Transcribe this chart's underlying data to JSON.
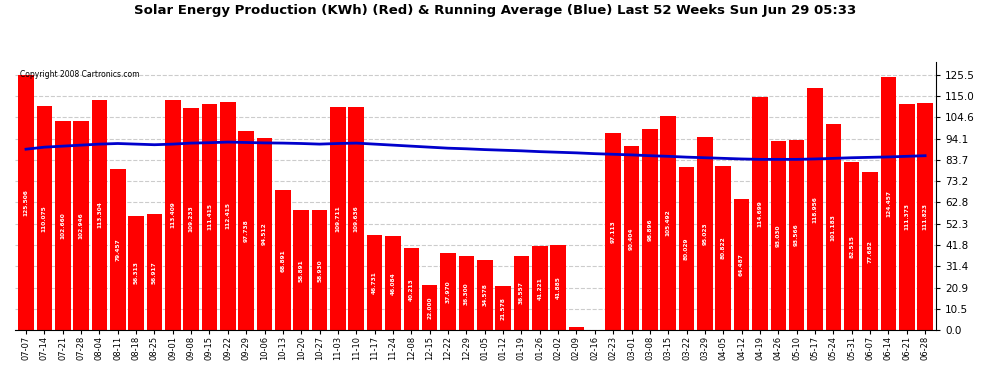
{
  "title": "Solar Energy Production (KWh) (Red) & Running Average (Blue) Last 52 Weeks Sun Jun 29 05:33",
  "copyright": "Copyright 2008 Cartronics.com",
  "bar_color": "#ff0000",
  "avg_line_color": "#0000cc",
  "background_color": "#ffffff",
  "plot_bg_color": "#ffffff",
  "grid_color": "#cccccc",
  "categories": [
    "07-07",
    "07-14",
    "07-21",
    "07-28",
    "08-04",
    "08-11",
    "08-18",
    "08-25",
    "09-01",
    "09-08",
    "09-15",
    "09-22",
    "09-29",
    "10-06",
    "10-13",
    "10-20",
    "10-27",
    "11-03",
    "11-10",
    "11-17",
    "11-24",
    "12-08",
    "12-15",
    "12-22",
    "12-29",
    "01-05",
    "01-12",
    "01-19",
    "01-26",
    "02-02",
    "02-09",
    "02-16",
    "02-23",
    "03-01",
    "03-08",
    "03-15",
    "03-22",
    "03-29",
    "04-05",
    "04-12",
    "04-19",
    "04-26",
    "05-10",
    "05-17",
    "05-24",
    "05-31",
    "06-07",
    "06-14",
    "06-21",
    "06-28"
  ],
  "values": [
    125.506,
    110.075,
    102.66,
    102.946,
    113.304,
    79.457,
    56.313,
    56.917,
    113.409,
    109.233,
    111.415,
    112.415,
    97.738,
    94.512,
    68.891,
    58.891,
    58.93,
    109.711,
    109.636,
    46.731,
    46.084,
    40.213,
    22.0,
    37.97,
    36.3,
    34.578,
    21.578,
    36.557,
    41.221,
    41.885,
    1.413,
    0.0,
    97.113,
    90.404,
    98.896,
    105.492,
    80.029,
    95.023,
    80.822,
    64.487,
    114.699,
    93.03,
    93.566,
    118.956,
    101.183,
    82.515,
    77.682,
    124.457,
    111.373,
    111.823
  ],
  "running_avg": [
    89.0,
    90.0,
    90.5,
    91.0,
    91.5,
    91.8,
    91.5,
    91.2,
    91.5,
    92.0,
    92.2,
    92.5,
    92.3,
    92.1,
    92.0,
    91.8,
    91.5,
    91.8,
    92.0,
    91.5,
    91.0,
    90.5,
    90.0,
    89.5,
    89.2,
    88.8,
    88.5,
    88.2,
    87.8,
    87.5,
    87.2,
    86.8,
    86.5,
    86.2,
    85.8,
    85.5,
    85.1,
    84.8,
    84.5,
    84.2,
    84.0,
    84.0,
    84.0,
    84.2,
    84.5,
    84.8,
    85.0,
    85.2,
    85.5,
    85.8
  ],
  "yticks": [
    0.0,
    10.5,
    20.9,
    31.4,
    41.8,
    52.3,
    62.8,
    73.2,
    83.7,
    94.1,
    104.6,
    115.0,
    125.5
  ],
  "ymax": 132,
  "ymin": 0
}
